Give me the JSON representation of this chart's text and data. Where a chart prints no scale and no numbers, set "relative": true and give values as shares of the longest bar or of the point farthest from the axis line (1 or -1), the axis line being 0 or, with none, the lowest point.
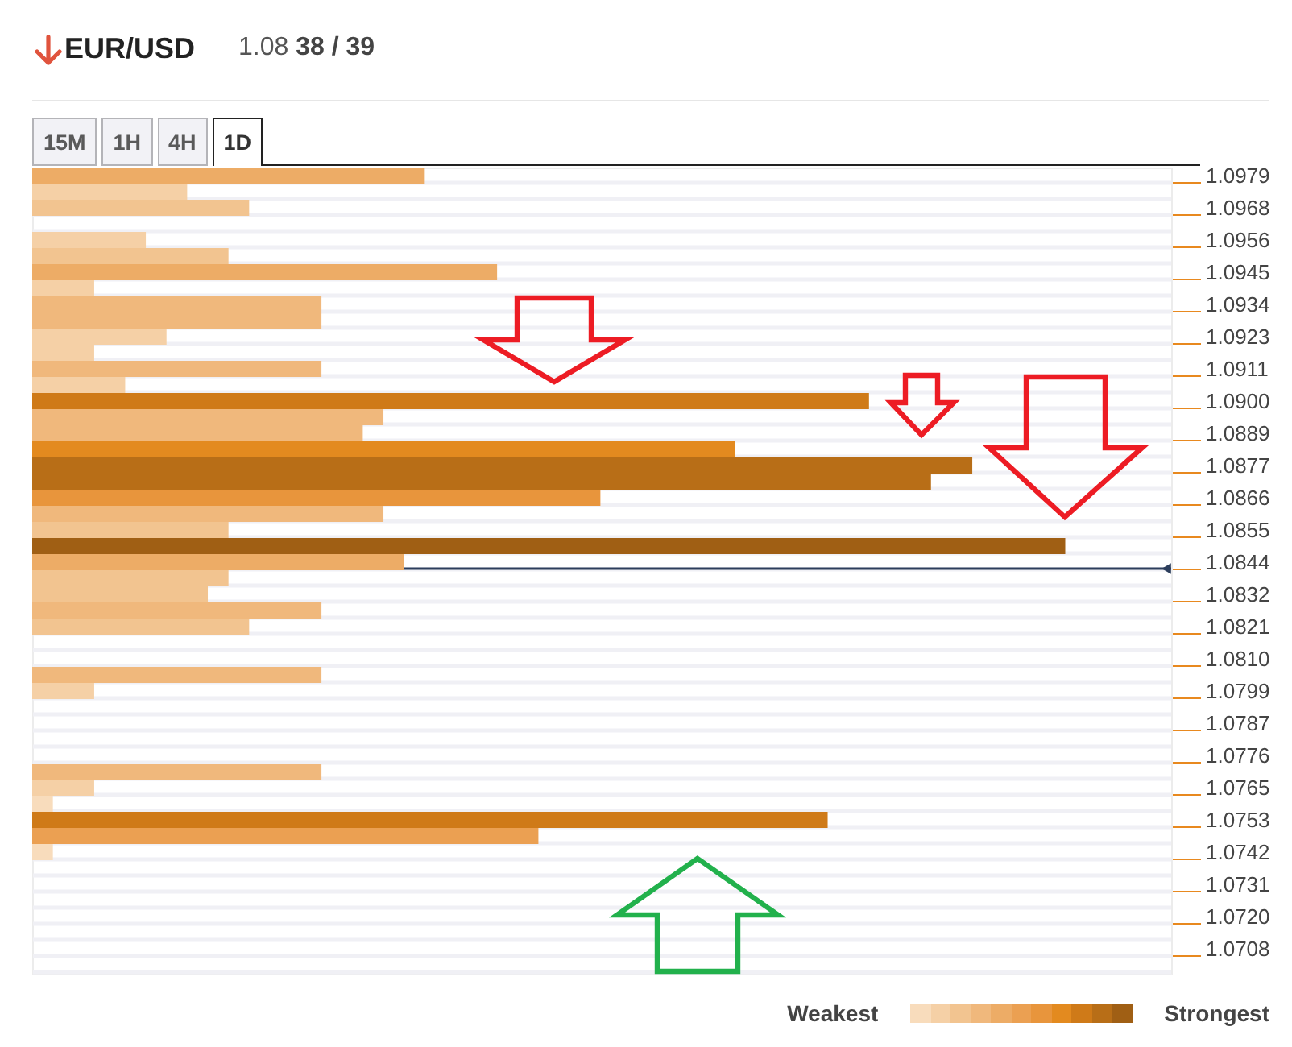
{
  "chart_data": {
    "type": "bar",
    "orientation": "horizontal",
    "relative": true,
    "title": "EUR/USD",
    "subtitle": "1.08 38 / 39",
    "categories": [
      "1.0979",
      null,
      "1.0968",
      null,
      "1.0956",
      null,
      "1.0945",
      null,
      "1.0934",
      null,
      "1.0923",
      null,
      "1.0911",
      null,
      "1.0900",
      null,
      "1.0889",
      null,
      "1.0877",
      null,
      "1.0866",
      null,
      "1.0855",
      null,
      "1.0844",
      null,
      "1.0832",
      null,
      "1.0821",
      null,
      "1.0810",
      null,
      "1.0799",
      null,
      "1.0787",
      null,
      "1.0776",
      null,
      "1.0765",
      null,
      "1.0753",
      null,
      "1.0742",
      null,
      "1.0731",
      null,
      "1.0720",
      null,
      "1.0708",
      null
    ],
    "values": [
      0.38,
      0.15,
      0.21,
      null,
      0.11,
      0.19,
      0.45,
      0.06,
      0.28,
      0.28,
      0.13,
      0.06,
      0.28,
      0.09,
      0.81,
      0.34,
      0.32,
      0.68,
      0.91,
      0.87,
      0.55,
      0.34,
      0.19,
      1,
      0.36,
      0.19,
      0.17,
      0.28,
      0.21,
      null,
      null,
      0.28,
      0.06,
      null,
      null,
      null,
      null,
      0.28,
      0.06,
      0.02,
      0.77,
      0.49,
      0.02,
      null,
      null,
      null,
      null,
      null,
      null,
      null
    ],
    "colors": [
      "#edac66",
      "#f5d0a6",
      "#f2c490",
      null,
      "#f5d0a6",
      "#f2c490",
      "#edac66",
      "#f5d0a6",
      "#f0b87c",
      "#f0b87c",
      "#f5d0a6",
      "#f5d0a6",
      "#f0b87c",
      "#f5d0a6",
      "#cf7a18",
      "#f0b87c",
      "#f0b87c",
      "#e38a1f",
      "#b86e17",
      "#b86e17",
      "#e8953c",
      "#f0b87c",
      "#f2c490",
      "#a05f14",
      "#edac66",
      "#f2c490",
      "#f2c490",
      "#f0b87c",
      "#f2c490",
      null,
      null,
      "#f0b87c",
      "#f5d0a6",
      null,
      null,
      null,
      null,
      "#f0b87c",
      "#f5d0a6",
      "#f8dcbc",
      "#cf7a18",
      "#eba052",
      "#f8dcbc",
      null,
      null,
      null,
      null,
      null,
      null,
      null
    ],
    "grid": "y",
    "tick_labels": "y",
    "ref_lines": [
      {
        "axis": "y",
        "value": "1.0844",
        "color": "#2c3e5c"
      }
    ],
    "annotations": [
      "15M",
      "1H",
      "4H",
      "1D",
      "Weakest",
      "Strongest"
    ]
  }
}
